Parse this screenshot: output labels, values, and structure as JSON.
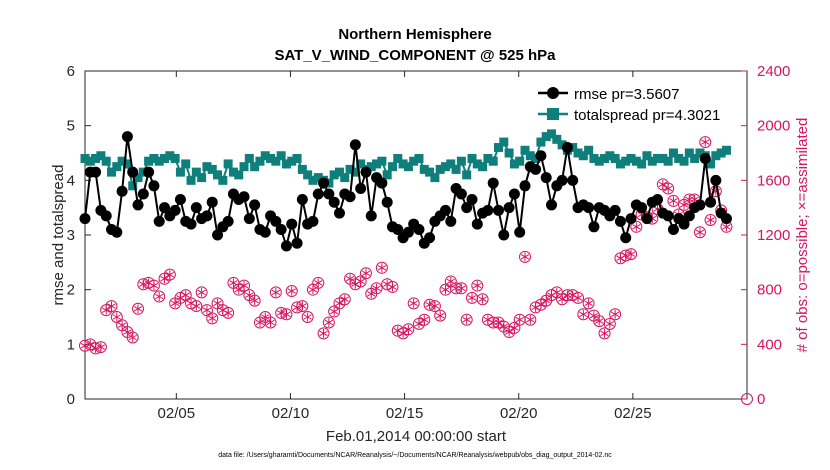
{
  "chart_data": {
    "type": "line",
    "title": "Northern Hemisphere",
    "subtitle": "SAT_V_WIND_COMPONENT @ 525 hPa",
    "xlabel": "Feb.01,2014 00:00:00 start",
    "ylabel_left": "rmse and totalspread",
    "ylabel_right": "# of obs: o=possible; ×=assimilated",
    "x_days_range": [
      1,
      30
    ],
    "x_ticks": [
      {
        "day": 5,
        "label": "02/05"
      },
      {
        "day": 10,
        "label": "02/10"
      },
      {
        "day": 15,
        "label": "02/15"
      },
      {
        "day": 20,
        "label": "02/20"
      },
      {
        "day": 25,
        "label": "02/25"
      }
    ],
    "ylim_left": [
      0,
      6
    ],
    "yticks_left": [
      "0",
      "1",
      "2",
      "3",
      "4",
      "5",
      "6"
    ],
    "ylim_right": [
      0,
      2400
    ],
    "yticks_right": [
      "0",
      "400",
      "800",
      "1200",
      "1600",
      "2000",
      "2400"
    ],
    "legend": [
      {
        "name": "rmse pr=3.5607",
        "color": "#000000",
        "marker": "circle"
      },
      {
        "name": "totalspread pr=4.3021",
        "color": "#0e7f7b",
        "marker": "square"
      }
    ],
    "colors": {
      "rmse": "#000000",
      "spread": "#0e7f7b",
      "obs": "#d6145f"
    },
    "series": [
      {
        "name": "rmse",
        "axis": "left",
        "values": [
          3.3,
          4.15,
          4.15,
          3.45,
          3.35,
          3.1,
          3.05,
          3.8,
          4.8,
          4.15,
          3.55,
          3.75,
          4.15,
          3.9,
          3.25,
          3.5,
          3.35,
          3.45,
          3.65,
          3.25,
          3.2,
          3.5,
          3.3,
          3.35,
          3.6,
          3.0,
          3.15,
          3.25,
          3.75,
          3.65,
          3.7,
          3.3,
          3.55,
          3.1,
          3.05,
          3.35,
          3.25,
          3.1,
          2.8,
          3.2,
          2.85,
          3.65,
          3.2,
          3.25,
          3.75,
          3.95,
          3.75,
          3.6,
          3.4,
          3.75,
          3.7,
          4.65,
          3.85,
          4.15,
          3.35,
          4.05,
          3.95,
          3.6,
          3.15,
          3.1,
          2.95,
          3.05,
          3.2,
          3.1,
          2.85,
          2.95,
          3.25,
          3.35,
          3.45,
          3.25,
          3.85,
          3.75,
          3.5,
          3.65,
          3.2,
          3.4,
          3.45,
          3.95,
          3.45,
          3.0,
          3.5,
          3.75,
          3.05,
          3.9,
          4.25,
          4.2,
          4.45,
          4.05,
          3.55,
          3.9,
          4.0,
          4.6,
          4.0,
          3.5,
          3.55,
          3.5,
          3.15,
          3.5,
          3.45,
          3.35,
          3.45,
          3.25,
          2.95,
          3.3,
          3.55,
          3.5,
          3.3,
          3.6,
          3.65,
          3.4,
          3.35,
          3.1,
          3.3,
          3.2,
          3.35,
          3.5,
          3.55,
          4.4,
          3.6,
          4.0,
          3.4,
          3.3
        ]
      },
      {
        "name": "totalspread",
        "axis": "left",
        "values": [
          4.4,
          4.35,
          4.4,
          4.45,
          4.35,
          4.15,
          4.25,
          4.35,
          4.3,
          3.9,
          4.05,
          4.15,
          4.35,
          4.4,
          4.35,
          4.4,
          4.45,
          4.4,
          4.15,
          4.3,
          4.0,
          4.15,
          4.05,
          4.25,
          4.2,
          4.1,
          4.0,
          4.3,
          4.15,
          4.1,
          4.25,
          4.4,
          4.25,
          4.35,
          4.45,
          4.4,
          4.35,
          4.45,
          4.3,
          4.35,
          4.4,
          4.2,
          4.1,
          4.0,
          4.05,
          4.0,
          3.95,
          4.1,
          4.15,
          4.05,
          4.2,
          4.15,
          4.3,
          4.2,
          4.25,
          4.3,
          4.35,
          4.1,
          4.25,
          4.4,
          4.3,
          4.25,
          4.35,
          4.4,
          4.2,
          4.15,
          4.05,
          4.2,
          4.25,
          4.3,
          4.2,
          4.35,
          4.1,
          4.4,
          4.3,
          4.25,
          4.4,
          4.35,
          4.6,
          4.7,
          4.5,
          4.3,
          4.35,
          4.55,
          4.45,
          4.4,
          4.7,
          4.8,
          4.85,
          4.75,
          4.65,
          4.55,
          4.6,
          4.5,
          4.45,
          4.55,
          4.4,
          4.35,
          4.4,
          4.45,
          4.4,
          4.3,
          4.35,
          4.4,
          4.35,
          4.3,
          4.45,
          4.35,
          4.4,
          4.4,
          4.35,
          4.5,
          4.4,
          4.35,
          4.5,
          4.4,
          4.5,
          4.45,
          4.3,
          4.45,
          4.5,
          4.55
        ]
      },
      {
        "name": "obs_possible",
        "axis": "right",
        "values": [
          390,
          400,
          370,
          380,
          650,
          680,
          600,
          540,
          490,
          450,
          660,
          840,
          850,
          830,
          750,
          880,
          910,
          700,
          740,
          760,
          700,
          680,
          780,
          650,
          590,
          700,
          650,
          630,
          850,
          800,
          830,
          760,
          720,
          560,
          600,
          560,
          780,
          630,
          620,
          790,
          670,
          680,
          600,
          800,
          850,
          480,
          560,
          640,
          700,
          730,
          880,
          840,
          860,
          920,
          770,
          810,
          960,
          840,
          820,
          500,
          480,
          510,
          700,
          550,
          580,
          690,
          680,
          610,
          800,
          860,
          810,
          810,
          580,
          740,
          830,
          730,
          580,
          560,
          560,
          530,
          490,
          520,
          580,
          1040,
          580,
          670,
          690,
          720,
          760,
          780,
          730,
          760,
          760,
          740,
          620,
          700,
          610,
          570,
          480,
          550,
          620,
          1030,
          1050,
          1060,
          1260,
          1350,
          1330,
          1320,
          1390,
          1570,
          1540,
          1450,
          1350,
          1420,
          1460,
          1460,
          1220,
          1880,
          1310,
          1520,
          1380,
          1260
        ]
      },
      {
        "name": "obs_assimilated",
        "axis": "right",
        "values": [
          390,
          400,
          370,
          380,
          650,
          680,
          600,
          540,
          490,
          450,
          660,
          840,
          850,
          830,
          750,
          880,
          910,
          700,
          740,
          760,
          700,
          680,
          780,
          650,
          590,
          700,
          650,
          630,
          850,
          800,
          830,
          760,
          720,
          560,
          600,
          560,
          780,
          630,
          620,
          790,
          670,
          680,
          600,
          800,
          850,
          480,
          560,
          640,
          700,
          730,
          880,
          840,
          860,
          920,
          770,
          810,
          960,
          840,
          820,
          500,
          480,
          510,
          700,
          550,
          580,
          690,
          680,
          610,
          800,
          860,
          810,
          810,
          580,
          740,
          830,
          730,
          580,
          560,
          560,
          530,
          490,
          520,
          580,
          1040,
          580,
          670,
          690,
          720,
          760,
          780,
          730,
          760,
          760,
          740,
          620,
          700,
          610,
          570,
          480,
          550,
          620,
          1030,
          1050,
          1060,
          1260,
          1350,
          1330,
          1320,
          1390,
          1570,
          1540,
          1450,
          1350,
          1420,
          1460,
          1460,
          1220,
          1880,
          1310,
          1520,
          1380,
          1260
        ]
      }
    ],
    "right_axis_zero_marker": 0
  },
  "footnote": "data file: /Users/gharamti/Documents/NCAR/Reanalysis/~/Documents/NCAR/Reanalysis/webpub/obs_diag_output_2014-02.nc"
}
